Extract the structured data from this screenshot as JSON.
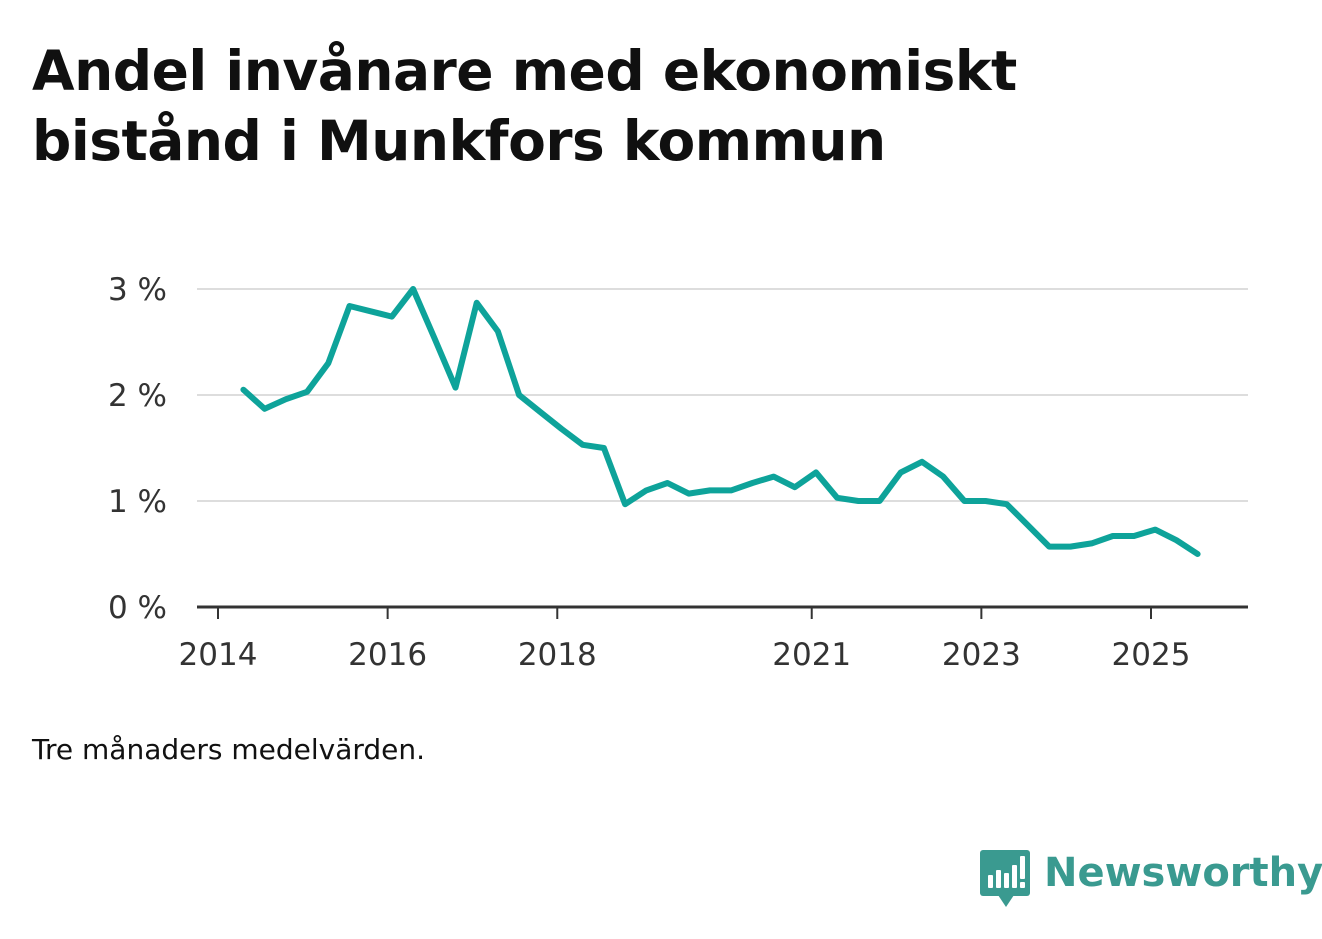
{
  "title": "Andel invånare med ekonomiskt bistånd i Munkfors kommun",
  "footnote": "Tre månaders medelvärden.",
  "brand": {
    "name": "Newsworthy",
    "icon": "newsworthy-logo-icon"
  },
  "colors": {
    "line": "#0ea39a",
    "grid": "#dddddd",
    "axis": "#333333",
    "brand": "#3a9a90"
  },
  "chart_data": {
    "type": "line",
    "title": "Andel invånare med ekonomiskt bistånd i Munkfors kommun",
    "xlabel": "",
    "ylabel": "",
    "ylim": [
      0,
      3
    ],
    "y_ticks": [
      0,
      1,
      2,
      3
    ],
    "y_tick_labels": [
      "0 %",
      "1 %",
      "2 %",
      "3 %"
    ],
    "x_ticks": [
      2014,
      2016,
      2018,
      2021,
      2023,
      2025
    ],
    "x_tick_labels": [
      "2014",
      "2016",
      "2018",
      "2021",
      "2023",
      "2025"
    ],
    "grid": true,
    "series": [
      {
        "name": "Andel invånare med ekonomiskt bistånd",
        "x": [
          2014.3,
          2014.55,
          2014.8,
          2015.05,
          2015.3,
          2015.55,
          2015.8,
          2016.05,
          2016.3,
          2016.55,
          2016.8,
          2017.05,
          2017.3,
          2017.55,
          2017.8,
          2018.05,
          2018.3,
          2018.55,
          2018.8,
          2019.05,
          2019.3,
          2019.55,
          2019.8,
          2020.05,
          2020.3,
          2020.55,
          2020.8,
          2021.05,
          2021.3,
          2021.55,
          2021.8,
          2022.05,
          2022.3,
          2022.55,
          2022.8,
          2023.05,
          2023.3,
          2023.55,
          2023.8,
          2024.05,
          2024.3,
          2024.55,
          2024.8,
          2025.05,
          2025.3,
          2025.55
        ],
        "values": [
          2.05,
          1.87,
          1.96,
          2.03,
          2.3,
          2.84,
          2.79,
          2.74,
          3.0,
          2.54,
          2.07,
          2.87,
          2.6,
          2.0,
          1.84,
          1.68,
          1.53,
          1.5,
          0.97,
          1.1,
          1.17,
          1.07,
          1.1,
          1.1,
          1.17,
          1.23,
          1.13,
          1.27,
          1.03,
          1.0,
          1.0,
          1.27,
          1.37,
          1.23,
          1.0,
          1.0,
          0.97,
          0.77,
          0.57,
          0.57,
          0.6,
          0.67,
          0.67,
          0.73,
          0.63,
          0.5
        ]
      }
    ]
  }
}
